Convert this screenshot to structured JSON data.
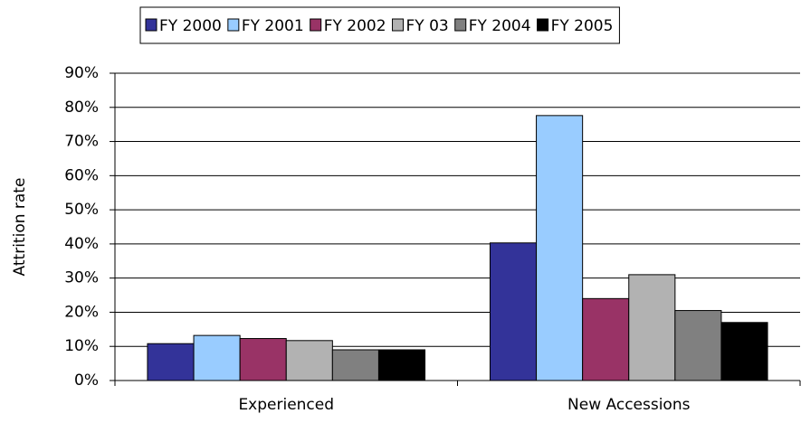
{
  "chart_data": {
    "type": "bar",
    "y_label": "Attrition rate",
    "categories": [
      "Experienced",
      "New Accessions"
    ],
    "series": [
      {
        "name": "FY 2000",
        "color": "#333399",
        "values": [
          10.8,
          40.3
        ]
      },
      {
        "name": "FY 2001",
        "color": "#99ccff",
        "values": [
          13.2,
          77.6
        ]
      },
      {
        "name": "FY 2002",
        "color": "#993366",
        "values": [
          12.3,
          24
        ]
      },
      {
        "name": "FY 03",
        "color": "#b2b2b2",
        "values": [
          11.7,
          31
        ]
      },
      {
        "name": "FY 2004",
        "color": "#808080",
        "values": [
          9,
          20.5
        ]
      },
      {
        "name": "FY 2005",
        "color": "#000000",
        "values": [
          9,
          17
        ]
      }
    ],
    "ylim": [
      0,
      90
    ],
    "yticks": [
      {
        "value": 0,
        "label": "0%"
      },
      {
        "value": 10,
        "label": "10%"
      },
      {
        "value": 20,
        "label": "20%"
      },
      {
        "value": 30,
        "label": "30%"
      },
      {
        "value": 40,
        "label": "40%"
      },
      {
        "value": 50,
        "label": "50%"
      },
      {
        "value": 60,
        "label": "60%"
      },
      {
        "value": 70,
        "label": "70%"
      },
      {
        "value": 80,
        "label": "80%"
      },
      {
        "value": 90,
        "label": "90%"
      }
    ],
    "grid": true,
    "legend": "top"
  }
}
